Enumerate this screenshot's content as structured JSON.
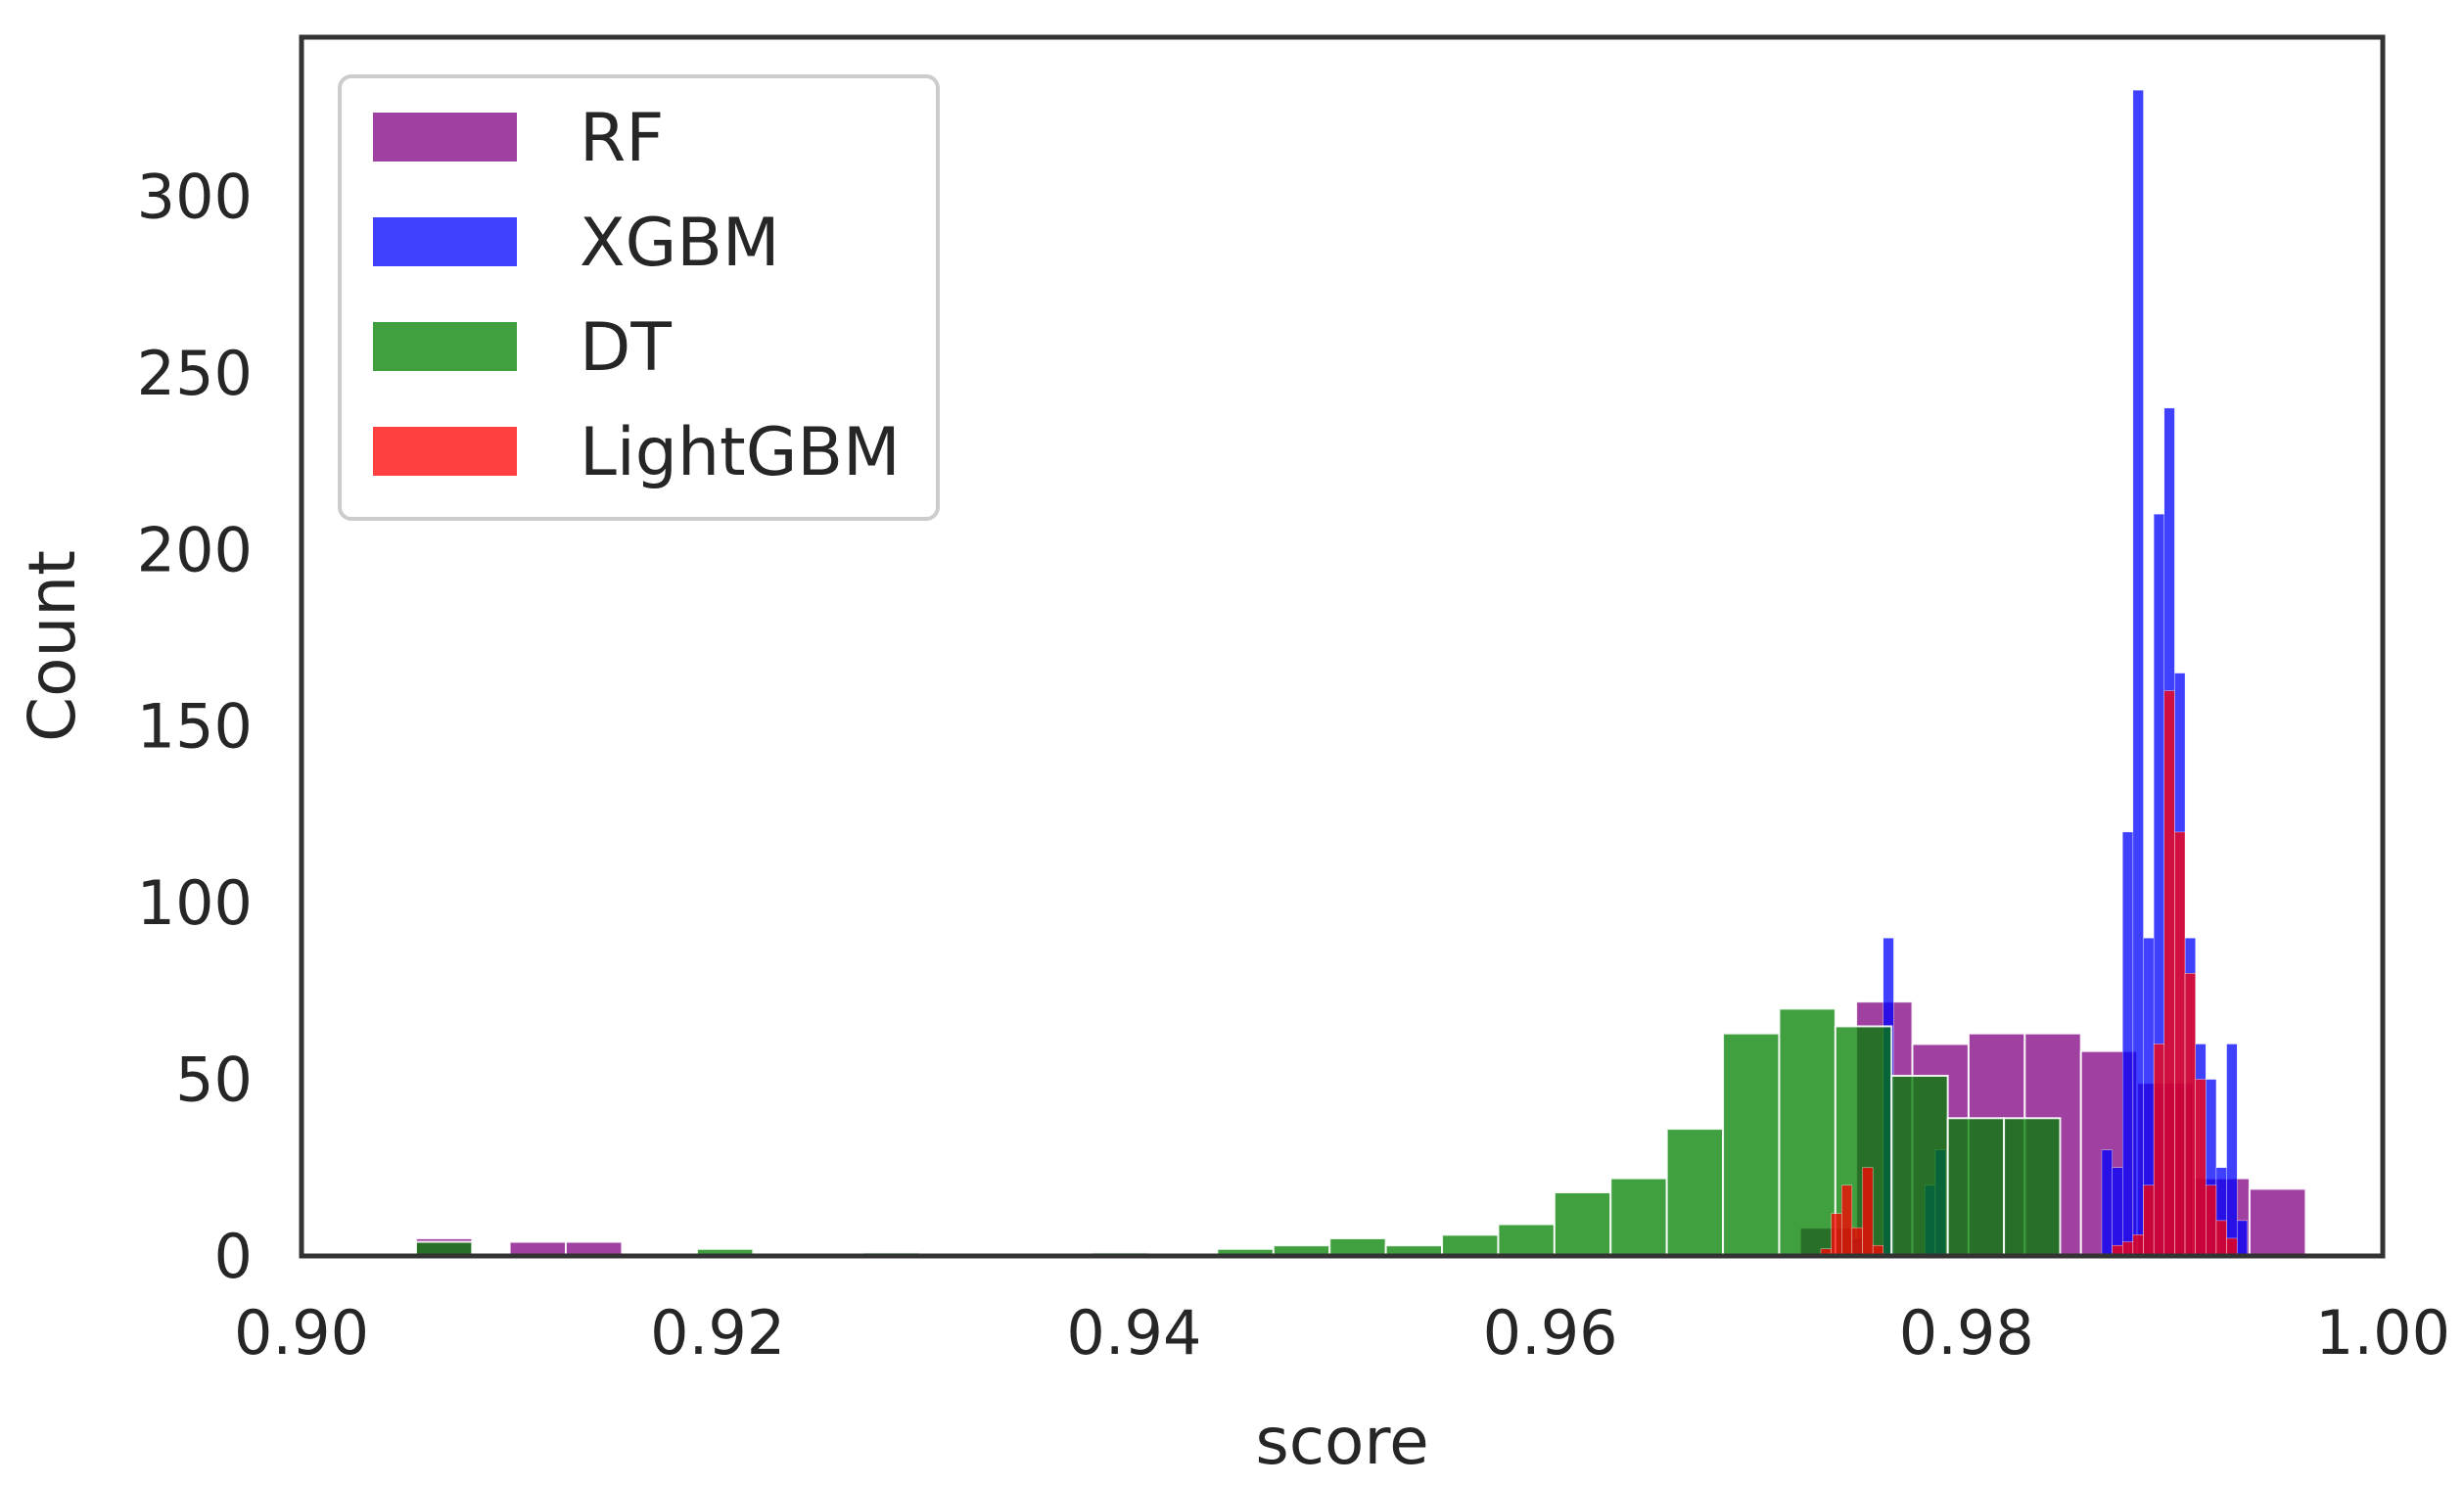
{
  "chart_data": {
    "type": "bar",
    "subtype": "histogram",
    "title": "",
    "xlabel": "score",
    "ylabel": "Count",
    "xlim": [
      0.9,
      1.0
    ],
    "ylim": [
      0,
      345
    ],
    "xticks": [
      "0.90",
      "0.92",
      "0.94",
      "0.96",
      "0.98",
      "1.00"
    ],
    "yticks": [
      "0",
      "50",
      "100",
      "150",
      "200",
      "250",
      "300"
    ],
    "grid": false,
    "legend_position": "upper-left",
    "series": [
      {
        "name": "RF",
        "color": "#800080",
        "opacity": 0.75,
        "bins": [
          [
            0.9055,
            0.9082,
            5
          ],
          [
            0.91,
            0.9127,
            4
          ],
          [
            0.9127,
            0.9154,
            4
          ],
          [
            0.972,
            0.9747,
            8
          ],
          [
            0.9747,
            0.9774,
            72
          ],
          [
            0.9774,
            0.9801,
            60
          ],
          [
            0.9801,
            0.9828,
            63
          ],
          [
            0.9828,
            0.9855,
            63
          ],
          [
            0.9855,
            0.9882,
            58
          ],
          [
            0.9882,
            0.9909,
            49
          ],
          [
            0.9909,
            0.9936,
            22
          ],
          [
            0.9936,
            0.9963,
            19
          ]
        ]
      },
      {
        "name": "XGBM",
        "color": "#0000ff",
        "opacity": 0.75,
        "bins": [
          [
            0.9745,
            0.975,
            5
          ],
          [
            0.976,
            0.9765,
            90
          ],
          [
            0.978,
            0.9785,
            20
          ],
          [
            0.9785,
            0.979,
            30
          ],
          [
            0.9865,
            0.987,
            30
          ],
          [
            0.987,
            0.9875,
            25
          ],
          [
            0.9875,
            0.988,
            120
          ],
          [
            0.988,
            0.9885,
            330
          ],
          [
            0.9885,
            0.989,
            90
          ],
          [
            0.989,
            0.9895,
            210
          ],
          [
            0.9895,
            0.99,
            240
          ],
          [
            0.99,
            0.9905,
            165
          ],
          [
            0.9905,
            0.991,
            90
          ],
          [
            0.991,
            0.9915,
            60
          ],
          [
            0.9915,
            0.992,
            50
          ],
          [
            0.992,
            0.9925,
            25
          ],
          [
            0.9925,
            0.993,
            60
          ],
          [
            0.993,
            0.9935,
            10
          ]
        ]
      },
      {
        "name": "DT",
        "color": "#008000",
        "opacity": 0.75,
        "bins": [
          [
            0.9055,
            0.9082,
            4
          ],
          [
            0.919,
            0.9217,
            2
          ],
          [
            0.927,
            0.9297,
            1
          ],
          [
            0.938,
            0.9407,
            1
          ],
          [
            0.944,
            0.9467,
            2
          ],
          [
            0.9467,
            0.9494,
            3
          ],
          [
            0.9494,
            0.9521,
            5
          ],
          [
            0.9521,
            0.9548,
            3
          ],
          [
            0.9548,
            0.9575,
            6
          ],
          [
            0.9575,
            0.9602,
            9
          ],
          [
            0.9602,
            0.9629,
            18
          ],
          [
            0.9629,
            0.9656,
            22
          ],
          [
            0.9656,
            0.9683,
            36
          ],
          [
            0.9683,
            0.971,
            63
          ],
          [
            0.971,
            0.9737,
            70
          ],
          [
            0.9737,
            0.9764,
            65
          ],
          [
            0.9764,
            0.9791,
            51
          ],
          [
            0.9791,
            0.9818,
            39
          ],
          [
            0.9818,
            0.9845,
            39
          ]
        ]
      },
      {
        "name": "LightGBM",
        "color": "#ff0000",
        "opacity": 0.75,
        "bins": [
          [
            0.973,
            0.9735,
            2
          ],
          [
            0.9735,
            0.974,
            12
          ],
          [
            0.974,
            0.9745,
            20
          ],
          [
            0.9745,
            0.975,
            8
          ],
          [
            0.975,
            0.9755,
            25
          ],
          [
            0.9755,
            0.976,
            3
          ],
          [
            0.987,
            0.9875,
            3
          ],
          [
            0.9875,
            0.988,
            4
          ],
          [
            0.988,
            0.9885,
            6
          ],
          [
            0.9885,
            0.989,
            20
          ],
          [
            0.989,
            0.9895,
            60
          ],
          [
            0.9895,
            0.99,
            160
          ],
          [
            0.99,
            0.9905,
            120
          ],
          [
            0.9905,
            0.991,
            80
          ],
          [
            0.991,
            0.9915,
            50
          ],
          [
            0.9915,
            0.992,
            20
          ],
          [
            0.992,
            0.9925,
            10
          ],
          [
            0.9925,
            0.993,
            5
          ]
        ]
      }
    ]
  }
}
